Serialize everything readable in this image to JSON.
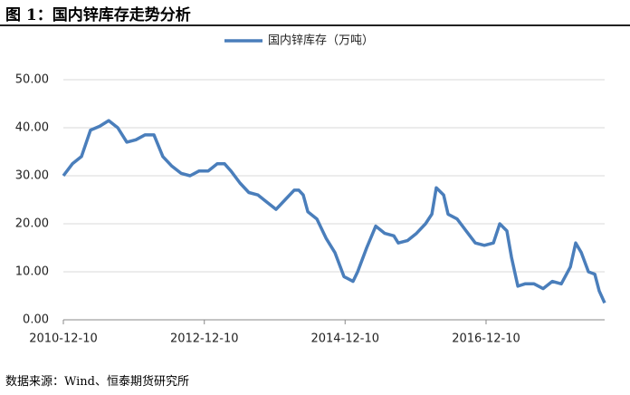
{
  "title": "图 1：国内锌库存走势分析",
  "source": "数据来源：Wind、恒泰期货研究所",
  "chart_data": {
    "type": "line",
    "x": [
      "2010-12-10",
      "2011-01-26",
      "2011-03-14",
      "2011-04-30",
      "2011-06-16",
      "2011-08-02",
      "2011-09-18",
      "2011-11-04",
      "2011-12-21",
      "2012-02-06",
      "2012-03-24",
      "2012-05-09",
      "2012-06-25",
      "2012-08-11",
      "2012-09-27",
      "2012-11-13",
      "2012-12-30",
      "2013-02-15",
      "2013-03-25",
      "2013-04-27",
      "2013-06-13",
      "2013-07-29",
      "2013-09-14",
      "2013-10-31",
      "2013-12-17",
      "2014-02-02",
      "2014-03-21",
      "2014-04-14",
      "2014-05-07",
      "2014-05-31",
      "2014-07-17",
      "2014-09-02",
      "2014-10-18",
      "2014-12-04",
      "2015-01-20",
      "2015-02-13",
      "2015-04-01",
      "2015-05-18",
      "2015-07-04",
      "2015-08-20",
      "2015-09-12",
      "2015-10-29",
      "2015-12-15",
      "2016-01-31",
      "2016-03-04",
      "2016-03-27",
      "2016-05-04",
      "2016-05-27",
      "2016-07-13",
      "2016-08-29",
      "2016-10-15",
      "2016-12-01",
      "2017-01-17",
      "2017-02-19",
      "2017-03-28",
      "2017-04-21",
      "2017-05-24",
      "2017-06-30",
      "2017-08-16",
      "2017-10-02",
      "2017-11-18",
      "2018-01-04",
      "2018-02-20",
      "2018-03-20",
      "2018-04-18",
      "2018-05-25",
      "2018-06-27",
      "2018-07-20",
      "2018-08-17"
    ],
    "series": [
      {
        "name": "国内锌库存（万吨）",
        "color": "#4a7ebb",
        "values": [
          30,
          32.5,
          34,
          39.5,
          40.3,
          41.5,
          40,
          37,
          37.5,
          38.5,
          38.5,
          34,
          32,
          30.5,
          30,
          31,
          31,
          32.5,
          32.5,
          31,
          28.5,
          26.5,
          26,
          24.5,
          23,
          25,
          27,
          27,
          26,
          22.5,
          21,
          17,
          14,
          9,
          8,
          10,
          15,
          19.5,
          18,
          17.5,
          16,
          16.5,
          18,
          20,
          22,
          27.5,
          26,
          22,
          21,
          18.5,
          16,
          15.5,
          16,
          20,
          18.5,
          13,
          7,
          7.5,
          7.5,
          6.5,
          8,
          7.5,
          11,
          16,
          14,
          10,
          9.5,
          6,
          3.5
        ]
      }
    ],
    "xlim": [
      "2010-12-10",
      "2018-08-17"
    ],
    "xticks": [
      "2010-12-10",
      "2012-12-10",
      "2014-12-10",
      "2016-12-10"
    ],
    "ylim": [
      0,
      50
    ],
    "yticks": [
      {
        "value": 0,
        "label": "0.00"
      },
      {
        "value": 10,
        "label": "10.00"
      },
      {
        "value": 20,
        "label": "20.00"
      },
      {
        "value": 30,
        "label": "30.00"
      },
      {
        "value": 40,
        "label": "40.00"
      },
      {
        "value": 50,
        "label": "50.00"
      }
    ],
    "grid": true
  }
}
